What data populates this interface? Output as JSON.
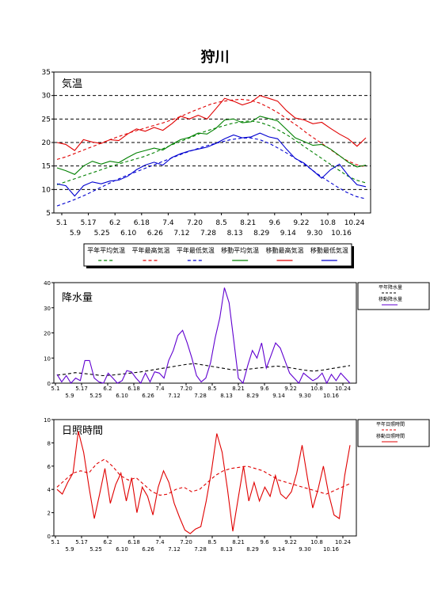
{
  "title": "狩川",
  "colors": {
    "avg": "#008000",
    "max": "#e00000",
    "min": "#0000d0",
    "precip": "#6000d0",
    "sun": "#e00000",
    "normal": "#000000"
  },
  "chart_data": [
    {
      "type": "line",
      "label": "気温",
      "ylim": [
        5,
        35
      ],
      "yticks": [
        "5",
        "10",
        "15",
        "20",
        "25",
        "30",
        "35"
      ],
      "grid": true,
      "x_labels_row1": [
        "5.1",
        "5.17",
        "6.2",
        "6.18",
        "7.4",
        "7.20",
        "8.5",
        "8.21",
        "9.6",
        "9.22",
        "10.8",
        "10.24"
      ],
      "x_labels_row2": [
        "5.9",
        "5.25",
        "6.10",
        "6.26",
        "7.12",
        "7.28",
        "8.13",
        "8.29",
        "9.14",
        "9.30",
        "10.16"
      ],
      "legend": [
        "平年平均気温",
        "平年最高気温",
        "平年最低気温",
        "移動平均気温",
        "移動最高気温",
        "移動最低気温"
      ],
      "series": [
        {
          "name": "平年平均気温",
          "style": "dashed",
          "color": "#008000",
          "values": [
            11.0,
            11.7,
            12.4,
            13.1,
            13.8,
            14.5,
            15.2,
            15.8,
            16.4,
            17.0,
            17.8,
            18.7,
            19.6,
            20.4,
            21.2,
            22.1,
            22.8,
            23.4,
            24.0,
            24.4,
            24.6,
            24.3,
            23.6,
            22.6,
            21.4,
            20.0,
            18.6,
            17.2,
            15.8,
            14.4,
            13.0,
            12.0,
            11.4
          ]
        },
        {
          "name": "平年最高気温",
          "style": "dashed",
          "color": "#e00000",
          "values": [
            16.4,
            17.0,
            17.8,
            18.6,
            19.4,
            20.2,
            21.0,
            21.7,
            22.4,
            23.0,
            23.6,
            24.2,
            24.9,
            25.7,
            26.6,
            27.4,
            28.2,
            28.7,
            29.0,
            29.2,
            29.0,
            28.4,
            27.4,
            26.2,
            24.8,
            23.4,
            21.8,
            20.4,
            19.0,
            17.5,
            16.2,
            15.3,
            14.8
          ]
        },
        {
          "name": "平年最低気温",
          "style": "dashed",
          "color": "#0000d0",
          "values": [
            6.5,
            7.2,
            8.0,
            8.9,
            9.9,
            10.9,
            11.9,
            12.8,
            13.6,
            14.4,
            15.2,
            16.0,
            16.8,
            17.6,
            18.3,
            19.0,
            19.6,
            20.1,
            20.6,
            20.9,
            21.0,
            20.6,
            19.8,
            18.7,
            17.5,
            16.2,
            14.8,
            13.3,
            11.9,
            10.6,
            9.4,
            8.5,
            8.0
          ]
        },
        {
          "name": "移動平均気温",
          "style": "solid",
          "color": "#008000",
          "values": [
            14.6,
            14.0,
            13.2,
            15.0,
            16.0,
            15.4,
            16.0,
            15.7,
            16.8,
            17.8,
            18.3,
            18.8,
            18.4,
            19.6,
            20.6,
            21.1,
            22.0,
            21.8,
            23.0,
            24.8,
            25.0,
            24.2,
            24.4,
            25.6,
            25.1,
            24.6,
            22.8,
            21.0,
            20.2,
            19.4,
            19.6,
            18.6,
            17.2,
            15.8,
            14.8,
            15.2
          ]
        },
        {
          "name": "移動最高気温",
          "style": "solid",
          "color": "#e00000",
          "values": [
            20.0,
            19.6,
            18.3,
            20.6,
            20.1,
            19.8,
            20.6,
            20.4,
            21.8,
            22.9,
            22.4,
            23.2,
            22.6,
            24.0,
            25.6,
            25.0,
            25.8,
            25.0,
            27.2,
            29.4,
            28.8,
            28.0,
            28.6,
            30.0,
            29.4,
            28.8,
            26.8,
            25.2,
            24.8,
            24.0,
            24.3,
            23.0,
            21.8,
            20.8,
            19.2,
            21.0
          ]
        },
        {
          "name": "移動最低気温",
          "style": "solid",
          "color": "#0000d0",
          "values": [
            11.2,
            10.8,
            8.6,
            10.8,
            11.6,
            11.2,
            11.8,
            12.0,
            12.8,
            14.2,
            15.2,
            15.8,
            15.2,
            16.8,
            17.6,
            18.2,
            18.6,
            19.0,
            19.8,
            20.8,
            21.6,
            21.0,
            21.2,
            22.0,
            21.2,
            20.8,
            18.6,
            16.6,
            15.6,
            14.0,
            12.4,
            14.2,
            15.4,
            13.0,
            11.0,
            10.6
          ]
        }
      ]
    },
    {
      "type": "line",
      "label": "降水量",
      "ylim": [
        0,
        40
      ],
      "yticks": [
        "0",
        "10",
        "20",
        "30",
        "40"
      ],
      "x_labels_row1": [
        "5.1",
        "5.17",
        "6.2",
        "6.18",
        "7.4",
        "7.20",
        "8.5",
        "8.21",
        "9.6",
        "9.22",
        "10.8",
        "10.24"
      ],
      "x_labels_row2": [
        "5.9",
        "5.25",
        "6.10",
        "6.26",
        "7.12",
        "7.28",
        "8.13",
        "8.29",
        "9.14",
        "9.30",
        "10.16"
      ],
      "legend": [
        "平年降水量",
        "移動降水量"
      ],
      "series": [
        {
          "name": "平年降水量",
          "style": "dashed",
          "color": "#000000",
          "values": [
            3.2,
            3.6,
            4.2,
            3.8,
            3.4,
            3.0,
            3.2,
            3.6,
            4.0,
            4.4,
            5.0,
            5.6,
            6.2,
            6.8,
            7.4,
            7.8,
            7.2,
            6.6,
            6.0,
            5.4,
            5.2,
            5.6,
            6.0,
            6.4,
            6.8,
            6.4,
            5.8,
            5.2,
            4.8,
            5.2,
            5.8,
            6.4,
            7.0
          ]
        },
        {
          "name": "移動降水量",
          "style": "solid",
          "color": "#6000d0",
          "values": [
            3.5,
            0.5,
            3.0,
            0.0,
            2.0,
            1.0,
            9.0,
            9.0,
            2.0,
            0.5,
            0.0,
            4.0,
            2.0,
            0.0,
            1.0,
            5.0,
            4.5,
            2.0,
            0.0,
            4.0,
            0.5,
            4.5,
            4.0,
            2.0,
            9.0,
            13.0,
            19.0,
            21.0,
            16.0,
            10.0,
            3.0,
            0.5,
            2.0,
            8.0,
            18.0,
            26.0,
            38.0,
            32.0,
            17.0,
            2.0,
            0.0,
            7.0,
            13.0,
            10.0,
            16.0,
            6.0,
            11.0,
            16.0,
            14.0,
            9.0,
            4.0,
            2.0,
            0.0,
            4.0,
            2.5,
            1.0,
            2.0,
            4.0,
            0.0,
            3.5,
            1.0,
            4.0,
            2.0,
            0.0
          ]
        }
      ]
    },
    {
      "type": "line",
      "label": "日照時間",
      "ylim": [
        0,
        10
      ],
      "yticks": [
        "0",
        "2",
        "4",
        "6",
        "8",
        "10"
      ],
      "x_labels_row1": [
        "5.1",
        "5.17",
        "6.2",
        "6.18",
        "7.4",
        "7.20",
        "8.5",
        "8.21",
        "9.6",
        "9.22",
        "10.8",
        "10.24"
      ],
      "x_labels_row2": [
        "5.9",
        "5.25",
        "6.10",
        "6.26",
        "7.12",
        "7.28",
        "8.13",
        "8.29",
        "9.14",
        "9.30",
        "10.16"
      ],
      "legend": [
        "平年日照時間",
        "移動日照時間"
      ],
      "series": [
        {
          "name": "平年日照時間",
          "style": "dashed",
          "color": "#e00000",
          "values": [
            4.2,
            4.8,
            5.4,
            5.6,
            5.4,
            6.2,
            6.6,
            6.0,
            5.2,
            4.8,
            5.0,
            4.4,
            3.8,
            3.5,
            3.6,
            4.0,
            4.2,
            3.8,
            4.0,
            4.6,
            5.2,
            5.6,
            5.8,
            5.9,
            6.0,
            5.8,
            5.6,
            5.2,
            4.8,
            4.6,
            4.4,
            4.2,
            4.0,
            3.8,
            3.6,
            3.9,
            4.2,
            4.5
          ]
        },
        {
          "name": "移動日照時間",
          "style": "solid",
          "color": "#e00000",
          "values": [
            4.0,
            3.6,
            4.6,
            5.4,
            9.0,
            7.2,
            4.2,
            1.5,
            3.6,
            5.8,
            2.8,
            4.4,
            5.4,
            3.0,
            5.0,
            2.0,
            4.2,
            3.4,
            1.8,
            4.2,
            5.6,
            4.6,
            2.8,
            1.6,
            0.5,
            0.2,
            0.6,
            0.8,
            3.0,
            5.6,
            8.8,
            7.2,
            4.0,
            0.4,
            3.2,
            6.0,
            3.0,
            4.6,
            3.0,
            4.2,
            3.4,
            5.2,
            3.6,
            3.2,
            3.8,
            5.4,
            7.8,
            5.0,
            2.4,
            4.0,
            6.0,
            3.6,
            1.8,
            1.5,
            5.2,
            7.8
          ]
        }
      ]
    }
  ]
}
